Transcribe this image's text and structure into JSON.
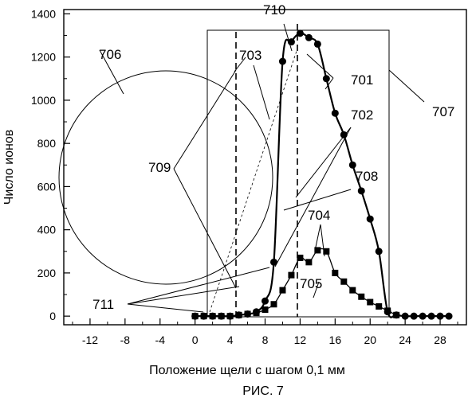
{
  "chart_data": {
    "type": "scatter",
    "xlabel": "Положение щели с шагом 0,1 мм",
    "ylabel": "Число ионов",
    "caption": "РИС. 7",
    "xlim": [
      -15,
      31
    ],
    "ylim": [
      -40,
      1420
    ],
    "x_ticks": [
      -12,
      -8,
      -4,
      0,
      4,
      8,
      12,
      16,
      20,
      24,
      28
    ],
    "y_ticks": [
      0,
      200,
      400,
      600,
      800,
      1000,
      1200,
      1400
    ],
    "series": [
      {
        "marker": "circle",
        "x": [
          0,
          1,
          2,
          3,
          4,
          5,
          6,
          7,
          8,
          9,
          10,
          11,
          12,
          13,
          14,
          15,
          16,
          17,
          18,
          19,
          20,
          21,
          22,
          23,
          24,
          25,
          26,
          27,
          28,
          29
        ],
        "y": [
          0,
          0,
          0,
          0,
          0,
          5,
          10,
          20,
          70,
          250,
          1180,
          1270,
          1310,
          1290,
          1260,
          1100,
          940,
          840,
          700,
          580,
          450,
          300,
          20,
          5,
          0,
          0,
          0,
          0,
          0,
          0
        ]
      },
      {
        "marker": "square",
        "x": [
          0,
          1,
          2,
          3,
          4,
          5,
          6,
          7,
          8,
          9,
          10,
          11,
          12,
          13,
          14,
          15,
          16,
          17,
          18,
          19,
          20,
          21,
          22,
          23
        ],
        "y": [
          0,
          0,
          0,
          0,
          0,
          5,
          10,
          15,
          30,
          55,
          120,
          190,
          270,
          250,
          305,
          300,
          200,
          160,
          120,
          90,
          65,
          45,
          25,
          5
        ]
      }
    ],
    "annotations": [
      "701",
      "702",
      "703",
      "704",
      "705",
      "706",
      "707",
      "708",
      "709",
      "710",
      "711"
    ]
  },
  "colors": {
    "ink": "#000000",
    "background": "#ffffff"
  }
}
